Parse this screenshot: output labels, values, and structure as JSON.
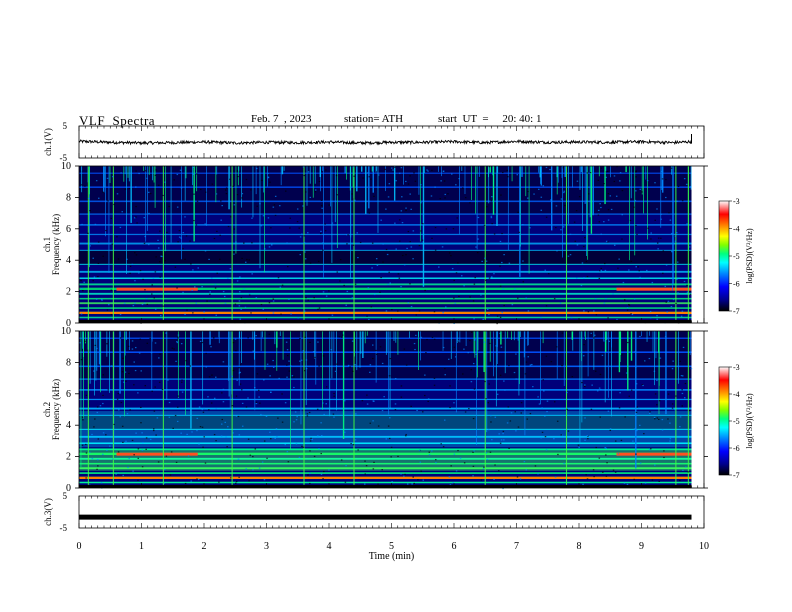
{
  "header": {
    "title": "VLF  Spectra",
    "date": "Feb. 7  , 2023",
    "station": "station= ATH",
    "start": "start  UT  =     20: 40: 1"
  },
  "colors": {
    "line": "#000000",
    "spectrogram_scale": [
      "#000000",
      "#00008b",
      "#0000ff",
      "#0087ff",
      "#00ffff",
      "#00ff80",
      "#80ff00",
      "#ffff00",
      "#ff8000",
      "#ff0000",
      "#ffffff"
    ]
  },
  "chart_data": [
    {
      "type": "line",
      "panel": "ch1-waveform",
      "ylabel": "ch.1(V)",
      "ylim": [
        -5,
        5
      ],
      "yticks": [
        "5",
        "-5"
      ],
      "x": [
        0,
        0.5,
        1,
        1.5,
        2,
        2.5,
        3,
        3.5,
        4,
        4.5,
        5,
        5.5,
        6,
        6.5,
        7,
        7.5,
        8,
        8.5,
        9,
        9.5,
        9.8
      ],
      "values": [
        0.2,
        -0.1,
        -0.3,
        -0.2,
        0.0,
        -0.3,
        -0.1,
        -0.2,
        0.0,
        -0.3,
        -0.1,
        -0.1,
        0.1,
        -0.2,
        0.2,
        -0.1,
        0.0,
        -0.1,
        0.1,
        -0.2,
        0.1
      ]
    },
    {
      "type": "heatmap",
      "panel": "ch1-spectrogram",
      "ylabel": "ch.1\nFrequency (kHz)",
      "ylim": [
        0,
        10
      ],
      "yticks": [
        "0",
        "2",
        "4",
        "6",
        "8",
        "10"
      ],
      "colorbar": {
        "label": "log(PSD)(V²/Hz)",
        "range": [
          -7,
          -3
        ],
        "ticks": [
          "-3",
          "-4",
          "-5",
          "-6",
          "-7"
        ]
      }
    },
    {
      "type": "heatmap",
      "panel": "ch2-spectrogram",
      "ylabel": "ch.2\nFrequency (kHz)",
      "ylim": [
        0,
        10
      ],
      "yticks": [
        "0",
        "2",
        "4",
        "6",
        "8",
        "10"
      ],
      "colorbar": {
        "label": "log(PSD)(V²/Hz)",
        "range": [
          -7,
          -3
        ],
        "ticks": [
          "-3",
          "-4",
          "-5",
          "-6",
          "-7"
        ]
      }
    },
    {
      "type": "line",
      "panel": "ch3-waveform",
      "ylabel": "ch.3(V)",
      "ylim": [
        -5,
        5
      ],
      "yticks": [
        "5",
        "-5"
      ],
      "x": [
        0,
        9.8
      ],
      "values": [
        -1.6,
        -1.6
      ]
    }
  ],
  "xaxis": {
    "label": "Time  (min)",
    "xlim": [
      0,
      10
    ],
    "ticks": [
      "0",
      "1",
      "2",
      "3",
      "4",
      "5",
      "6",
      "7",
      "8",
      "9",
      "10"
    ]
  }
}
